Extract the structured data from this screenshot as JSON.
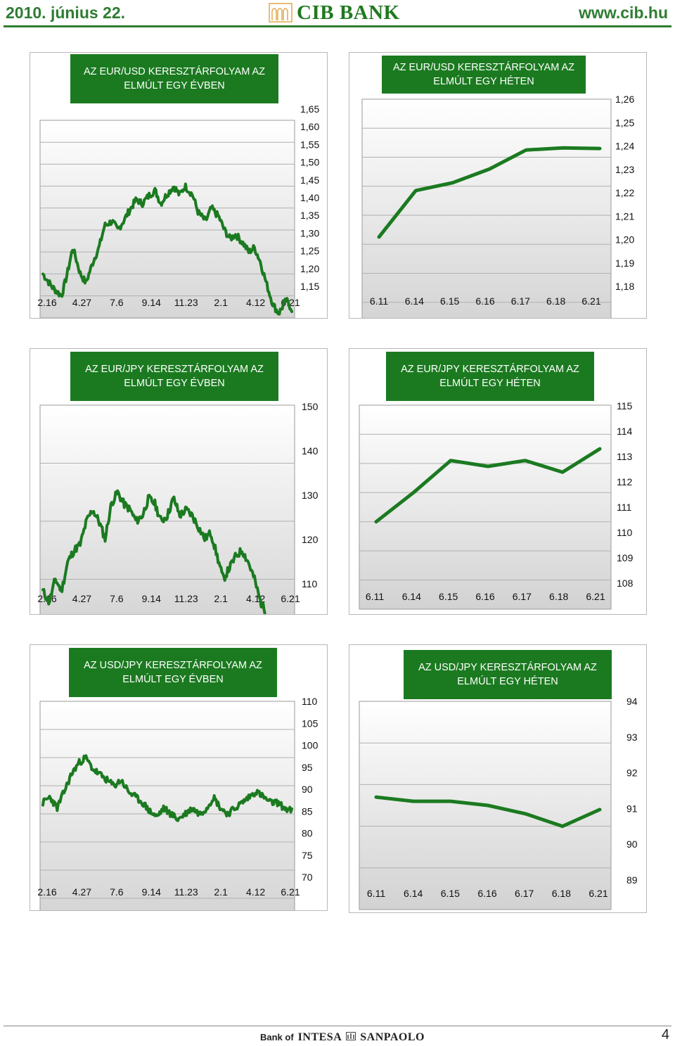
{
  "header": {
    "date": "2010. június 22.",
    "brand": "CIB BANK",
    "url": "www.cib.hu"
  },
  "footer": {
    "bank_of": "Bank of",
    "group_name": "INTESA",
    "group_name2": "SANPAOLO",
    "page_number": "4"
  },
  "colors": {
    "line": "#1b7a20",
    "title_bg": "#1b7a20",
    "grid": "#b0b0b0",
    "plot_bg_top": "#ffffff",
    "plot_bg_bottom": "#d2d2d2"
  },
  "chart_data": [
    {
      "id": "eurusd-year",
      "type": "line",
      "title": "AZ EUR/USD KERESZTÁRFOLYAM AZ ELMÚLT EGY ÉVBEN",
      "x_tick_labels": [
        "2.16",
        "4.27",
        "7.6",
        "9.14",
        "11.23",
        "2.1",
        "4.12",
        "6.21"
      ],
      "y_tick_labels": [
        "1,65",
        "1,60",
        "1,55",
        "1,50",
        "1,45",
        "1,40",
        "1,35",
        "1,30",
        "1,25",
        "1,20",
        "1,15"
      ],
      "ylim": [
        1.15,
        1.65
      ],
      "anchors": [
        [
          0,
          1.3
        ],
        [
          0.5,
          1.27
        ],
        [
          1,
          1.25
        ],
        [
          1.3,
          1.3
        ],
        [
          1.6,
          1.36
        ],
        [
          2,
          1.3
        ],
        [
          2.3,
          1.28
        ],
        [
          2.7,
          1.33
        ],
        [
          3,
          1.36
        ],
        [
          3.3,
          1.41
        ],
        [
          3.7,
          1.42
        ],
        [
          4,
          1.4
        ],
        [
          4.3,
          1.42
        ],
        [
          4.7,
          1.45
        ],
        [
          5,
          1.47
        ],
        [
          5.3,
          1.46
        ],
        [
          5.7,
          1.48
        ],
        [
          6,
          1.49
        ],
        [
          6.3,
          1.46
        ],
        [
          6.6,
          1.48
        ],
        [
          7,
          1.5
        ],
        [
          7.3,
          1.48
        ],
        [
          7.6,
          1.5
        ],
        [
          8,
          1.48
        ],
        [
          8.3,
          1.44
        ],
        [
          8.7,
          1.42
        ],
        [
          9,
          1.45
        ],
        [
          9.4,
          1.43
        ],
        [
          9.7,
          1.4
        ],
        [
          10,
          1.38
        ],
        [
          10.3,
          1.39
        ],
        [
          10.7,
          1.37
        ],
        [
          11,
          1.35
        ],
        [
          11.3,
          1.36
        ],
        [
          11.6,
          1.33
        ],
        [
          12,
          1.27
        ],
        [
          12.3,
          1.23
        ],
        [
          12.6,
          1.21
        ],
        [
          13,
          1.24
        ],
        [
          13.3,
          1.22
        ]
      ],
      "xmax": 13.3,
      "noise": 0.008,
      "seed": 7,
      "ymode": "top-at-first"
    },
    {
      "id": "eurusd-week",
      "type": "line",
      "title": "AZ EUR/USD KERESZTÁRFOLYAM AZ ELMÚLT EGY HÉTEN",
      "categories": [
        "6.11",
        "6.14",
        "6.15",
        "6.16",
        "6.17",
        "6.18",
        "6.21"
      ],
      "values": [
        1.2125,
        1.2285,
        1.2312,
        1.2359,
        1.2425,
        1.2432,
        1.243
      ],
      "y_tick_labels": [
        "1,26",
        "1,25",
        "1,24",
        "1,23",
        "1,22",
        "1,21",
        "1,20",
        "1,19",
        "1,18"
      ],
      "ylim": [
        1.18,
        1.26
      ]
    },
    {
      "id": "eurjpy-year",
      "type": "line",
      "title": "AZ EUR/JPY KERESZTÁRFOLYAM AZ ELMÚLT EGY ÉVBEN",
      "x_tick_labels": [
        "2.16",
        "4.27",
        "7.6",
        "9.14",
        "11.23",
        "2.1",
        "4.12",
        "6.21"
      ],
      "y_tick_labels": [
        "150",
        "140",
        "130",
        "120",
        "110"
      ],
      "ylim": [
        110,
        150
      ],
      "anchors": [
        [
          0,
          118
        ],
        [
          0.4,
          116
        ],
        [
          0.8,
          120
        ],
        [
          1.2,
          118
        ],
        [
          1.6,
          123
        ],
        [
          2,
          125
        ],
        [
          2.4,
          126
        ],
        [
          2.8,
          130
        ],
        [
          3.2,
          132
        ],
        [
          3.6,
          130
        ],
        [
          4,
          127
        ],
        [
          4.4,
          133
        ],
        [
          4.8,
          135
        ],
        [
          5.2,
          133
        ],
        [
          5.6,
          132
        ],
        [
          6,
          130
        ],
        [
          6.4,
          131
        ],
        [
          6.8,
          134
        ],
        [
          7.2,
          133
        ],
        [
          7.6,
          130
        ],
        [
          8,
          131
        ],
        [
          8.4,
          134
        ],
        [
          8.8,
          131
        ],
        [
          9.2,
          132
        ],
        [
          9.6,
          131
        ],
        [
          10,
          129
        ],
        [
          10.4,
          127
        ],
        [
          10.8,
          128
        ],
        [
          11.2,
          124
        ],
        [
          11.6,
          120
        ],
        [
          12,
          122
        ],
        [
          12.4,
          124
        ],
        [
          12.8,
          125
        ],
        [
          13.2,
          123
        ],
        [
          13.6,
          120
        ],
        [
          14,
          116
        ],
        [
          14.4,
          114
        ],
        [
          14.8,
          113
        ],
        [
          15.2,
          113
        ],
        [
          15.6,
          111.5
        ],
        [
          16,
          112
        ]
      ],
      "xmax": 16,
      "noise": 0.7,
      "seed": 11,
      "ymode": "first-at-top"
    },
    {
      "id": "eurjpy-week",
      "type": "line",
      "title": "AZ EUR/JPY KERESZTÁRFOLYAM AZ ELMÚLT EGY HÉTEN",
      "categories": [
        "6.11",
        "6.14",
        "6.15",
        "6.16",
        "6.17",
        "6.18",
        "6.21"
      ],
      "values": [
        111.0,
        112.0,
        113.1,
        112.9,
        113.1,
        112.7,
        113.5
      ],
      "y_tick_labels": [
        "115",
        "114",
        "113",
        "112",
        "111",
        "110",
        "109",
        "108"
      ],
      "ylim": [
        108,
        115
      ]
    },
    {
      "id": "usdjpy-year",
      "type": "line",
      "title": "AZ USD/JPY KERESZTÁRFOLYAM AZ ELMÚLT EGY ÉVBEN",
      "x_tick_labels": [
        "2.16",
        "4.27",
        "7.6",
        "9.14",
        "11.23",
        "2.1",
        "4.12",
        "6.21"
      ],
      "y_tick_labels": [
        "110",
        "105",
        "100",
        "95",
        "90",
        "85",
        "80",
        "75",
        "70"
      ],
      "ylim": [
        70,
        110
      ],
      "anchors": [
        [
          0,
          92
        ],
        [
          0.4,
          93
        ],
        [
          0.8,
          91
        ],
        [
          1.2,
          94
        ],
        [
          1.6,
          97
        ],
        [
          2,
          99
        ],
        [
          2.4,
          100
        ],
        [
          2.8,
          98
        ],
        [
          3.2,
          97
        ],
        [
          3.6,
          96
        ],
        [
          4,
          95
        ],
        [
          4.4,
          96
        ],
        [
          4.8,
          94
        ],
        [
          5.2,
          93
        ],
        [
          5.6,
          92
        ],
        [
          6,
          90.5
        ],
        [
          6.4,
          89.5
        ],
        [
          6.8,
          91
        ],
        [
          7.2,
          90
        ],
        [
          7.6,
          89
        ],
        [
          8,
          90
        ],
        [
          8.4,
          91
        ],
        [
          8.8,
          90
        ],
        [
          9.2,
          91
        ],
        [
          9.6,
          93
        ],
        [
          10,
          91
        ],
        [
          10.4,
          90
        ],
        [
          10.8,
          91
        ],
        [
          11.2,
          92
        ],
        [
          11.6,
          93
        ],
        [
          12,
          94
        ],
        [
          12.4,
          93
        ],
        [
          12.8,
          92
        ],
        [
          13.2,
          92
        ],
        [
          13.6,
          91
        ],
        [
          14,
          90.5
        ]
      ],
      "xmax": 14,
      "noise": 0.6,
      "seed": 23,
      "ymode": "first-at-top"
    },
    {
      "id": "usdjpy-week",
      "type": "line",
      "title": "AZ USD/JPY KERESZTÁRFOLYAM AZ ELMÚLT EGY HÉTEN",
      "categories": [
        "6.11",
        "6.14",
        "6.15",
        "6.16",
        "6.17",
        "6.18",
        "6.21"
      ],
      "values": [
        91.7,
        91.6,
        91.6,
        91.5,
        91.3,
        91.0,
        91.4
      ],
      "y_tick_labels": [
        "94",
        "93",
        "92",
        "91",
        "90",
        "89"
      ],
      "ylim": [
        89,
        94
      ]
    }
  ]
}
